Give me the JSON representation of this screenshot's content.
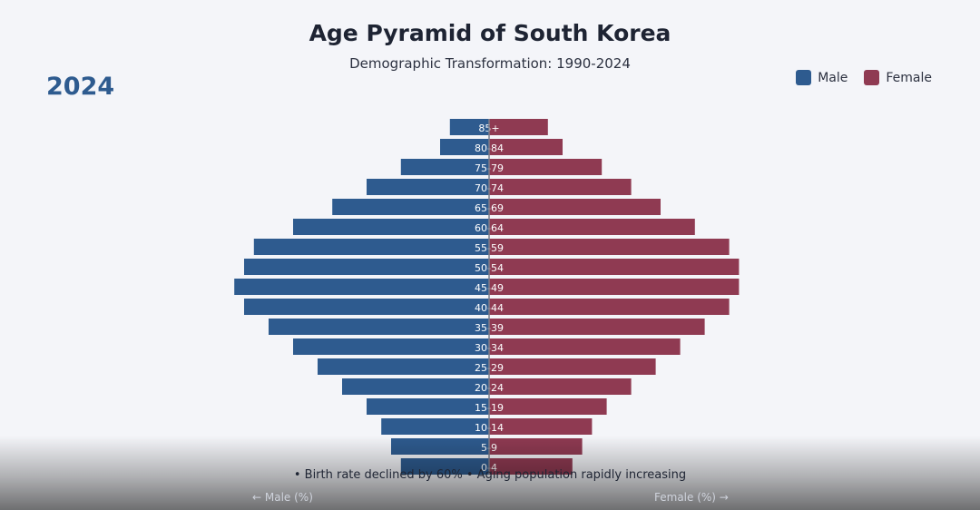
{
  "title": "Age Pyramid of South Korea",
  "subtitle": "Demographic Transformation: 1990-2024",
  "year_label": "2024",
  "legend": {
    "position": "top-right",
    "male_label": "Male",
    "female_label": "Female"
  },
  "colors": {
    "male": "#2e5b8f",
    "female": "#8f3a52",
    "background": "#f4f5f9"
  },
  "note": "• Birth rate declined by 60% • Aging population rapidly increasing",
  "axis": {
    "left_label": "← Male (%)",
    "right_label": "Female (%) →"
  },
  "chart_data": {
    "type": "bar",
    "orientation": "horizontal-diverging",
    "categories": [
      "85+",
      "80-84",
      "75-79",
      "70-74",
      "65-69",
      "60-64",
      "55-59",
      "50-54",
      "45-49",
      "40-44",
      "35-39",
      "30-34",
      "25-29",
      "20-24",
      "15-19",
      "10-14",
      "5-9",
      "0-4"
    ],
    "series": [
      {
        "name": "Male",
        "values": [
          1.6,
          2.0,
          3.6,
          5.0,
          6.4,
          8.0,
          9.6,
          10.0,
          10.4,
          10.0,
          9.0,
          8.0,
          7.0,
          6.0,
          5.0,
          4.4,
          4.0,
          3.6
        ]
      },
      {
        "name": "Female",
        "values": [
          2.4,
          3.0,
          4.6,
          5.8,
          7.0,
          8.4,
          9.8,
          10.2,
          10.2,
          9.8,
          8.8,
          7.8,
          6.8,
          5.8,
          4.8,
          4.2,
          3.8,
          3.4
        ]
      }
    ],
    "xlim": [
      -12,
      12
    ],
    "xlabel": "",
    "ylabel": "",
    "grid": false
  }
}
